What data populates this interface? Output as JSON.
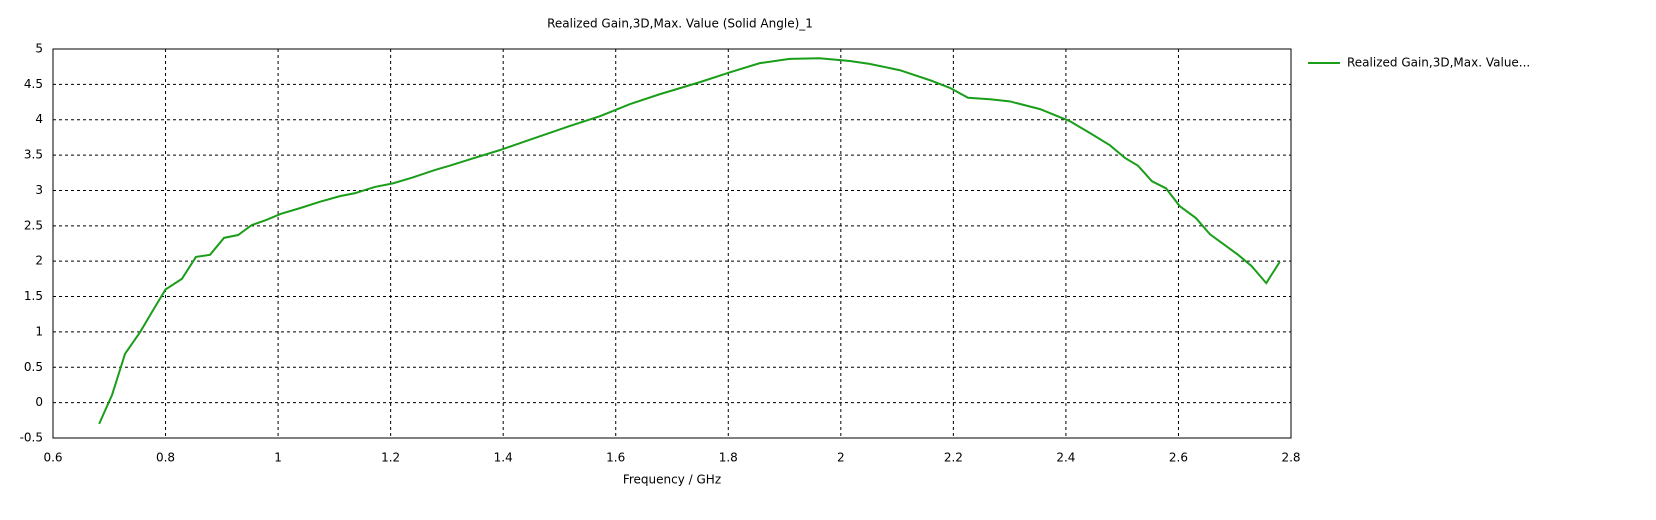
{
  "chart_data": {
    "type": "line",
    "title": "Realized Gain,3D,Max. Value (Solid Angle)_1",
    "x_label": "Frequency / GHz",
    "xlim": [
      0.6,
      2.8
    ],
    "xticks": [
      0.6,
      0.8,
      1,
      1.2,
      1.4,
      1.6,
      1.8,
      2,
      2.2,
      2.4,
      2.6,
      2.8
    ],
    "ylim": [
      -0.5,
      5
    ],
    "yticks": [
      -0.5,
      0,
      0.5,
      1,
      1.5,
      2,
      2.5,
      3,
      3.5,
      4,
      4.5,
      5
    ],
    "grid": true,
    "legend": "right",
    "x": [
      0.682,
      0.705,
      0.728,
      0.755,
      0.778,
      0.8,
      0.829,
      0.854,
      0.879,
      0.904,
      0.929,
      0.953,
      0.978,
      1.005,
      1.039,
      1.074,
      1.11,
      1.136,
      1.172,
      1.204,
      1.238,
      1.279,
      1.305,
      1.341,
      1.394,
      1.456,
      1.518,
      1.572,
      1.625,
      1.678,
      1.749,
      1.803,
      1.856,
      1.909,
      1.962,
      2.016,
      2.051,
      2.105,
      2.158,
      2.194,
      2.226,
      2.265,
      2.3,
      2.354,
      2.407,
      2.443,
      2.478,
      2.505,
      2.528,
      2.553,
      2.578,
      2.602,
      2.631,
      2.656,
      2.682,
      2.706,
      2.73,
      2.756,
      2.78
    ],
    "series": [
      {
        "name": "Realized Gain,3D,Max. Value...",
        "color": "#1a9e1a",
        "values": [
          -0.3,
          0.11,
          0.69,
          1.0,
          1.31,
          1.6,
          1.75,
          2.06,
          2.09,
          2.33,
          2.37,
          2.51,
          2.58,
          2.67,
          2.75,
          2.84,
          2.92,
          2.96,
          3.05,
          3.1,
          3.18,
          3.29,
          3.35,
          3.44,
          3.57,
          3.74,
          3.91,
          4.05,
          4.22,
          4.36,
          4.53,
          4.67,
          4.8,
          4.86,
          4.87,
          4.83,
          4.79,
          4.7,
          4.56,
          4.45,
          4.31,
          4.29,
          4.26,
          4.15,
          3.98,
          3.81,
          3.64,
          3.46,
          3.35,
          3.13,
          3.03,
          2.78,
          2.61,
          2.38,
          2.23,
          2.09,
          1.93,
          1.69,
          1.99
        ]
      }
    ]
  }
}
